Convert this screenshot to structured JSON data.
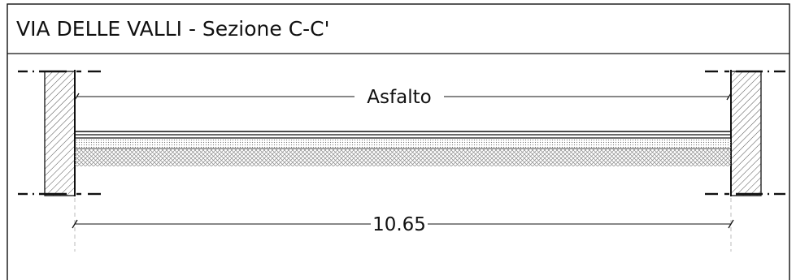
{
  "title": "VIA DELLE VALLI - Sezione C-C'",
  "layers": {
    "surface_label": "Asfalto"
  },
  "dimension": {
    "width_label": "10.65"
  },
  "colors": {
    "line": "#111111",
    "background": "#ffffff",
    "hatch": "#555555",
    "gravel": "#8a8a8a",
    "dashed_guide": "#bbbbbb"
  }
}
